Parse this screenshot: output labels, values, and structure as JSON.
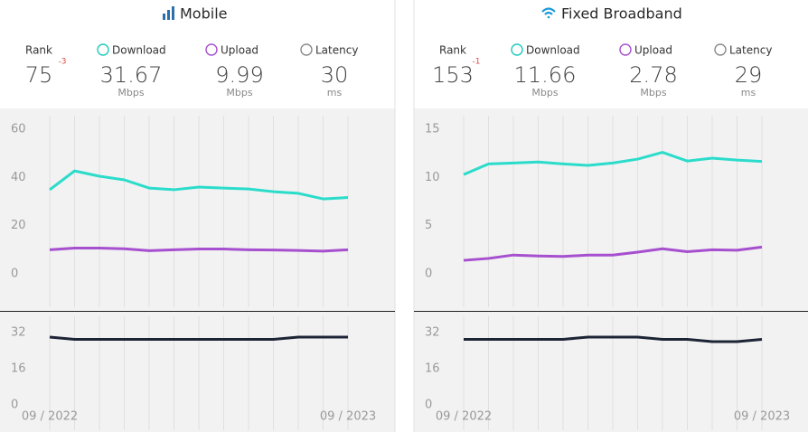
{
  "panels": [
    {
      "title": "Mobile",
      "stats": [
        {
          "label": "Rank",
          "value": 75,
          "change": -3
        },
        {
          "label": "Download",
          "value": 31.67,
          "unit": "Mbps"
        },
        {
          "label": "Upload",
          "value": 9.99,
          "unit": "Mbps"
        },
        {
          "label": "Latency",
          "value": 30,
          "unit": "ms"
        }
      ]
    },
    {
      "title": "Fixed Broadband",
      "stats": [
        {
          "label": "Rank",
          "value": 153,
          "change": -1
        },
        {
          "label": "Download",
          "value": 11.66,
          "unit": "Mbps"
        },
        {
          "label": "Upload",
          "value": 2.78,
          "unit": "Mbps"
        },
        {
          "label": "Latency",
          "value": 29,
          "unit": "ms"
        }
      ]
    }
  ],
  "chart_data": [
    {
      "type": "line",
      "ylim": [
        0,
        60
      ],
      "yticks": [
        0,
        20,
        40,
        60
      ],
      "series": [
        {
          "color": "#2bdccb",
          "values": [
            34.9,
            42.7,
            40.5,
            39,
            35.6,
            34.9,
            36,
            35.6,
            35.2,
            34.1,
            33.4,
            31.1,
            31.67
          ]
        },
        {
          "color": "#a64fcf",
          "values": [
            10,
            10.7,
            10.7,
            10.4,
            9.6,
            10,
            10.3,
            10.3,
            10,
            9.9,
            9.7,
            9.4,
            9.99
          ]
        }
      ]
    },
    {
      "type": "line",
      "categories": [
        "09 / 2022",
        null,
        null,
        null,
        null,
        null,
        null,
        null,
        null,
        null,
        null,
        null,
        "09 / 2023"
      ],
      "ylim": [
        0,
        32
      ],
      "yticks": [
        0,
        16,
        32
      ],
      "series": [
        {
          "color": "#1d2435",
          "values": [
            30,
            29,
            29,
            29,
            29,
            29,
            29,
            29,
            29,
            29,
            30,
            30,
            30
          ]
        }
      ]
    },
    {
      "type": "line",
      "ylim": [
        0,
        15
      ],
      "yticks": [
        0,
        5,
        10,
        15
      ],
      "series": [
        {
          "color": "#2bdccb",
          "values": [
            10.3,
            11.4,
            11.5,
            11.6,
            11.4,
            11.25,
            11.5,
            11.9,
            12.6,
            11.7,
            12,
            11.8,
            11.66
          ]
        },
        {
          "color": "#a64fcf",
          "values": [
            1.4,
            1.6,
            1.95,
            1.85,
            1.8,
            1.95,
            1.95,
            2.25,
            2.6,
            2.3,
            2.5,
            2.45,
            2.78
          ]
        }
      ]
    },
    {
      "type": "line",
      "categories": [
        "09 / 2022",
        null,
        null,
        null,
        null,
        null,
        null,
        null,
        null,
        null,
        null,
        null,
        "09 / 2023"
      ],
      "ylim": [
        0,
        32
      ],
      "yticks": [
        0,
        16,
        32
      ],
      "series": [
        {
          "color": "#1d2435",
          "values": [
            29,
            29,
            29,
            29,
            29,
            30,
            30,
            30,
            29,
            29,
            28,
            28,
            29
          ]
        }
      ]
    }
  ]
}
